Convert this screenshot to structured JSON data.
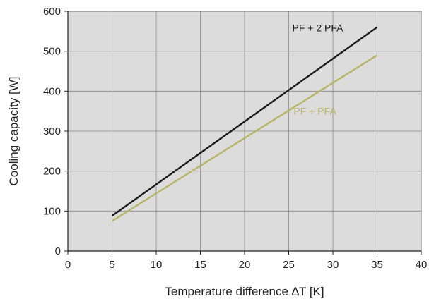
{
  "chart_data": {
    "type": "line",
    "title": "",
    "xlabel": "Temperature difference ∆T [K]",
    "ylabel": "Cooling capacity [W]",
    "xlim": [
      0,
      40
    ],
    "ylim": [
      0,
      600
    ],
    "xticks": [
      0,
      5,
      10,
      15,
      20,
      25,
      30,
      35,
      40
    ],
    "yticks": [
      0,
      100,
      200,
      300,
      400,
      500,
      600
    ],
    "grid": true,
    "plot_background": "#dcdcdc",
    "grid_color": "#8a8a8a",
    "series": [
      {
        "name": "PF + 2 PFA",
        "color": "#1a1a1a",
        "label_color": "#1a1a1a",
        "x": [
          5,
          35
        ],
        "y": [
          88,
          560
        ]
      },
      {
        "name": "PF + PFA",
        "color": "#b8b466",
        "label_color": "#b8b466",
        "x": [
          5,
          35
        ],
        "y": [
          75,
          490
        ]
      }
    ]
  }
}
